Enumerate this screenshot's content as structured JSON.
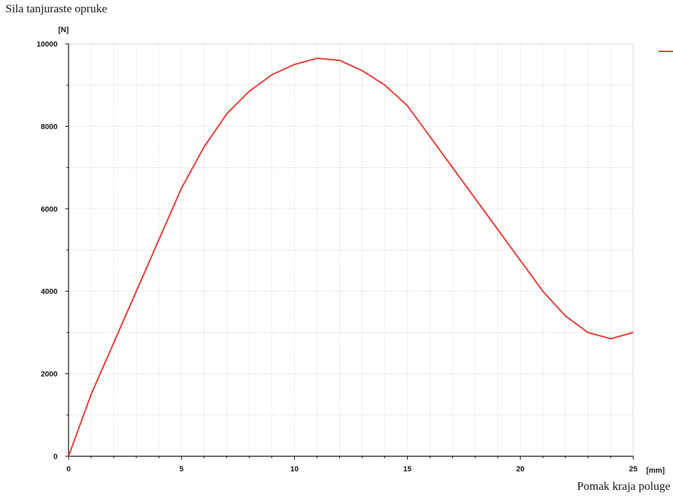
{
  "chart_data": {
    "type": "line",
    "title": "Sila tanjuraste opruke",
    "xlabel": "Pomak kraja poluge",
    "x_unit": "[mm]",
    "y_unit": "[N]",
    "xlim": [
      0,
      25
    ],
    "ylim": [
      0,
      10000
    ],
    "x_ticks": [
      0,
      5,
      10,
      15,
      20,
      25
    ],
    "y_ticks": [
      0,
      2000,
      4000,
      6000,
      8000,
      10000
    ],
    "x_minor_step": 1,
    "y_minor_step": 1000,
    "grid": true,
    "legend": "top-right",
    "series": [
      {
        "color": "#e8302a",
        "x": [
          0,
          1,
          2,
          3,
          4,
          5,
          6,
          7,
          8,
          9,
          10,
          11,
          12,
          13,
          14,
          15,
          16,
          17,
          18,
          19,
          20,
          21,
          22,
          23,
          24,
          25
        ],
        "y": [
          0,
          1500,
          2750,
          4000,
          5250,
          6500,
          7500,
          8300,
          8850,
          9250,
          9500,
          9650,
          9600,
          9350,
          9000,
          8500,
          7750,
          7000,
          6250,
          5500,
          4750,
          4000,
          3400,
          3000,
          2850,
          3000
        ]
      }
    ]
  }
}
